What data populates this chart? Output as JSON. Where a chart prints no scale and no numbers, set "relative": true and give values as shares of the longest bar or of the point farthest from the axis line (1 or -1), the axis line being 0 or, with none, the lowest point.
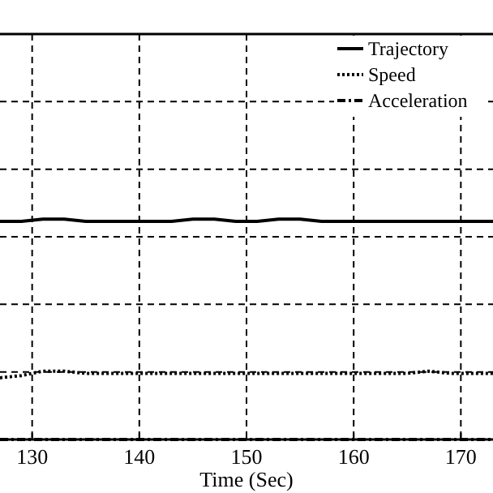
{
  "chart_data": {
    "type": "line",
    "xlabel": "Time (Sec)",
    "relative": true,
    "x": [
      127,
      129,
      131,
      133,
      135,
      137,
      139,
      141,
      143,
      145,
      147,
      149,
      151,
      153,
      155,
      157,
      159,
      161,
      163,
      165,
      167,
      169,
      171,
      173
    ],
    "xlim": [
      127,
      173
    ],
    "xticks": [
      130,
      140,
      150,
      160,
      170
    ],
    "grid": true,
    "legend": "top right",
    "series": [
      {
        "name": "Trajectory",
        "color": "#000000",
        "line_style": "solid",
        "values": [
          0.99,
          0.99,
          1,
          1,
          0.99,
          0.99,
          0.99,
          0.99,
          0.99,
          1,
          1,
          0.99,
          0.99,
          1,
          1,
          0.99,
          0.99,
          0.99,
          0.99,
          0.99,
          0.99,
          0.99,
          0.99,
          0.99
        ]
      },
      {
        "name": "Speed",
        "color": "#000000",
        "line_style": "dotted",
        "values": [
          0.28,
          0.29,
          0.31,
          0.31,
          0.3,
          0.3,
          0.3,
          0.3,
          0.3,
          0.3,
          0.3,
          0.3,
          0.3,
          0.3,
          0.3,
          0.3,
          0.3,
          0.3,
          0.3,
          0.3,
          0.31,
          0.3,
          0.3,
          0.3
        ]
      },
      {
        "name": "Acceleration",
        "color": "#000000",
        "line_style": "dashed",
        "values": [
          0,
          0,
          0,
          0,
          0,
          0,
          0,
          0,
          0,
          0,
          0,
          0,
          0,
          0,
          0,
          0,
          0,
          0,
          0,
          0,
          0,
          0,
          0,
          0
        ]
      }
    ]
  }
}
